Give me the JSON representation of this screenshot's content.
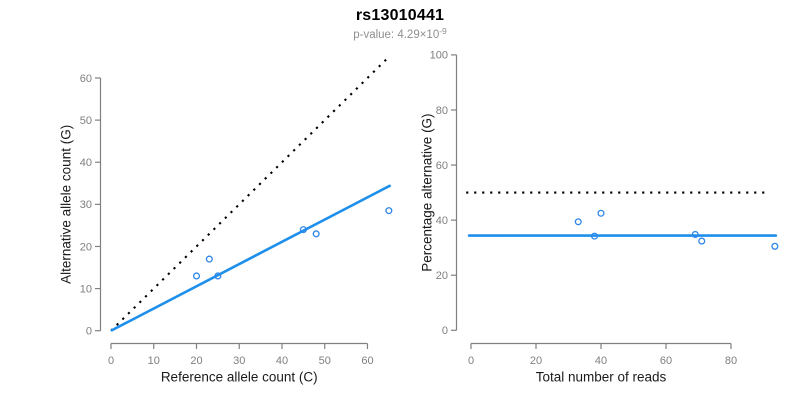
{
  "header": {
    "title": "rs13010441",
    "pvalue_prefix": "p-value: ",
    "pvalue_base": "4.29×10",
    "pvalue_exponent": "-9"
  },
  "colors": {
    "accent_blue": "#1E8FEB",
    "point_blue": "#2E86E8",
    "identity_black": "#000000",
    "axis_gray": "#808080",
    "tick_label_gray": "#7f7f7f",
    "axis_title_color": "#1a1a1a"
  },
  "chart_data": [
    {
      "type": "scatter",
      "title": "",
      "xlabel": "Reference allele count (C)",
      "ylabel": "Alternative allele count (G)",
      "xticks": [
        0,
        10,
        20,
        30,
        40,
        50,
        60
      ],
      "yticks": [
        0,
        10,
        20,
        30,
        40,
        50,
        60
      ],
      "xlim": [
        0,
        65
      ],
      "ylim": [
        0,
        65
      ],
      "grid": false,
      "legend": null,
      "points": [
        [
          20,
          13
        ],
        [
          23,
          17
        ],
        [
          25,
          13
        ],
        [
          45,
          24
        ],
        [
          48,
          23
        ],
        [
          65,
          28.5
        ]
      ],
      "lines": [
        {
          "name": "identity-line",
          "style": "dotted-black",
          "x1": 0,
          "y1": 0,
          "x2": 64.8,
          "y2": 64.8
        },
        {
          "name": "fit-line",
          "style": "solid-blue",
          "x1": 0.2,
          "y1": 0.1,
          "x2": 65.2,
          "y2": 34.4
        }
      ]
    },
    {
      "type": "scatter",
      "title": "",
      "xlabel": "Total number of reads",
      "ylabel": "Percentage alternative (G)",
      "xticks": [
        0,
        20,
        40,
        60,
        80
      ],
      "yticks": [
        0,
        20,
        40,
        60,
        80,
        100
      ],
      "xlim": [
        0,
        94
      ],
      "ylim": [
        0,
        100
      ],
      "grid": false,
      "legend": null,
      "points": [
        [
          33,
          39.4
        ],
        [
          40,
          42.5
        ],
        [
          38,
          34.2
        ],
        [
          69,
          34.8
        ],
        [
          71,
          32.4
        ],
        [
          93.5,
          30.5
        ]
      ],
      "lines": [
        {
          "name": "expected-50pct-line",
          "style": "dotted-black",
          "x1": -1.5,
          "y1": 50,
          "x2": 91.5,
          "y2": 50
        },
        {
          "name": "observed-mean-line",
          "style": "solid-blue",
          "x1": -0.6,
          "y1": 34.4,
          "x2": 93.8,
          "y2": 34.4
        }
      ]
    }
  ]
}
